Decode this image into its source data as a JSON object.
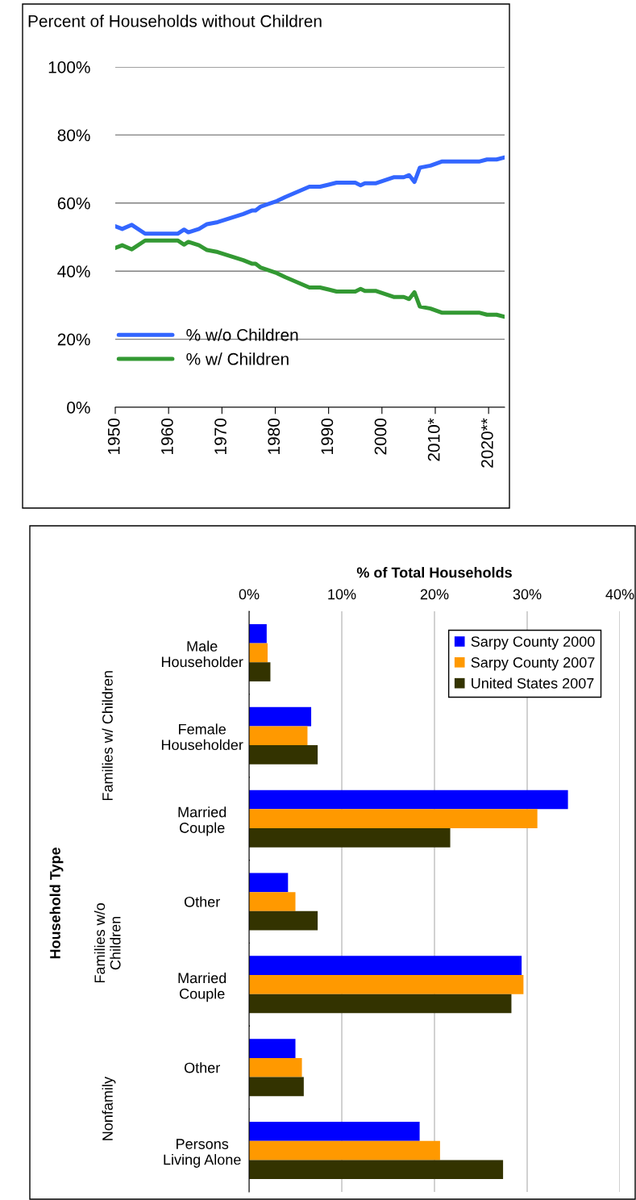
{
  "chart_data": [
    {
      "type": "line",
      "title": "Percent of Households without Children",
      "x": [
        1950,
        1951.3,
        1953.1,
        1955.6,
        1961.7,
        1962.9,
        1963.7,
        1965.7,
        1967.2,
        1969.2,
        1974,
        1975.6,
        1976.3,
        1977.3,
        1980.3,
        1981.9,
        1986.4,
        1988.4,
        1990,
        1991.5,
        1995,
        1996,
        1996.8,
        1998.8,
        2002.3,
        2004.1,
        2005.1,
        2006.1,
        2007.1,
        2009.1,
        2011.2,
        2018.2,
        2019.7,
        2021.5,
        2023
      ],
      "series": [
        {
          "name": "% w/o Children",
          "color": "#3366ff",
          "values": [
            53.2,
            52.4,
            53.6,
            51,
            51,
            52.2,
            51.4,
            52.4,
            53.8,
            54.4,
            56.8,
            57.8,
            57.8,
            59,
            60.6,
            61.8,
            64.8,
            64.8,
            65.4,
            66,
            66,
            65.2,
            65.8,
            65.8,
            67.6,
            67.6,
            68.2,
            66.2,
            70.4,
            71,
            72.2,
            72.2,
            72.8,
            72.8,
            73.4
          ]
        },
        {
          "name": "% w/ Children",
          "color": "#339933",
          "values": [
            46.8,
            47.6,
            46.4,
            49,
            49,
            47.8,
            48.6,
            47.6,
            46.2,
            45.6,
            43.2,
            42.2,
            42.2,
            41,
            39.4,
            38.2,
            35.2,
            35.2,
            34.6,
            34,
            34,
            34.8,
            34.2,
            34.2,
            32.4,
            32.4,
            31.8,
            33.8,
            29.6,
            29,
            27.8,
            27.8,
            27.2,
            27.2,
            26.6
          ]
        }
      ],
      "xlim": [
        1950,
        2023
      ],
      "xticks": [
        1950,
        1960,
        1970,
        1980,
        1990,
        2000,
        {
          "value": 2010,
          "label": "2010*"
        },
        {
          "value": 2020,
          "label": "2020**"
        }
      ],
      "ylim": [
        0,
        100
      ],
      "yticks": [
        {
          "value": 0,
          "label": "0%"
        },
        {
          "value": 20,
          "label": "20%"
        },
        {
          "value": 40,
          "label": "40%"
        },
        {
          "value": 60,
          "label": "60%"
        },
        {
          "value": 80,
          "label": "80%"
        },
        {
          "value": 100,
          "label": "100%"
        }
      ],
      "grid": "y",
      "legend": "bottom left"
    },
    {
      "type": "bar",
      "orientation": "horizontal",
      "xlabel": "% of Total Households",
      "ylabel": "Household Type",
      "categories": [
        "Male\nHouseholder",
        "Female\nHouseholder",
        "Married\nCouple",
        "Other",
        "Married\nCouple",
        "Other",
        "Persons\nLiving Alone"
      ],
      "series": [
        {
          "name": "Sarpy County 2000",
          "color": "#0000ff",
          "values": [
            1.9,
            6.7,
            34.4,
            4.2,
            29.4,
            5.0,
            18.4
          ]
        },
        {
          "name": "Sarpy County 2007",
          "color": "#ff9900",
          "values": [
            2.0,
            6.3,
            31.1,
            5.0,
            29.6,
            5.7,
            20.6
          ]
        },
        {
          "name": "United States 2007",
          "color": "#333300",
          "values": [
            2.3,
            7.4,
            21.7,
            7.4,
            28.3,
            5.9,
            27.4
          ]
        }
      ],
      "xlim": [
        0,
        40
      ],
      "xticks": [
        {
          "value": 0,
          "label": "0%"
        },
        {
          "value": 10,
          "label": "10%"
        },
        {
          "value": 20,
          "label": "20%"
        },
        {
          "value": 30,
          "label": "30%"
        },
        {
          "value": 40,
          "label": "40%"
        }
      ],
      "annotations": [
        "Families w/ Children",
        "Families w/o\nChildren",
        "Nonfamily"
      ],
      "grid": "x",
      "legend": "top right"
    }
  ]
}
